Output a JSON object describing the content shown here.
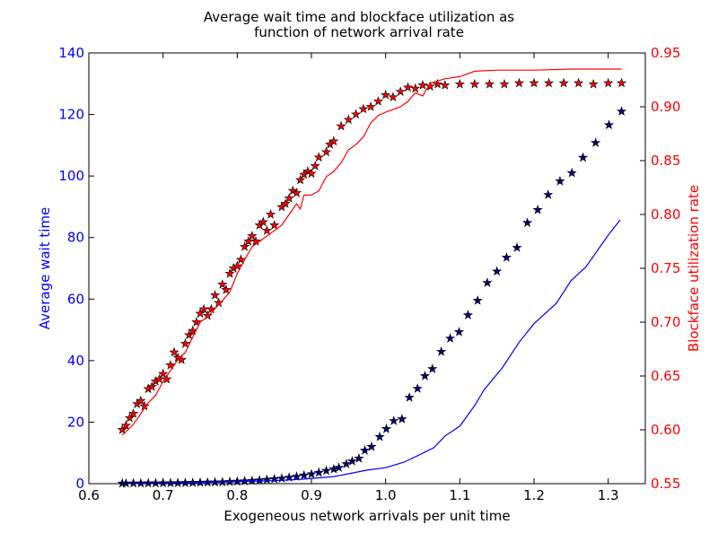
{
  "chart_data": {
    "type": "scatter-line-dual",
    "title": [
      "Average wait time and blockface utilization as",
      "function of network arrival rate"
    ],
    "x_label": "Exogeneous network arrivals per unit time",
    "y_label": "Average wait time",
    "y2_label": "Blockface utilization rate",
    "xlim": [
      0.6,
      1.35
    ],
    "xticks": [
      0.6,
      0.7,
      0.8,
      0.9,
      {
        "value": 1,
        "label": "1.0"
      },
      1.1,
      1.2,
      1.3
    ],
    "ylim": [
      0,
      140
    ],
    "yticks": [
      0,
      20,
      40,
      60,
      80,
      100,
      120,
      140
    ],
    "y2lim": [
      0.55,
      0.95
    ],
    "y2ticks": [
      0.55,
      {
        "value": 0.6,
        "label": "0.60"
      },
      0.65,
      {
        "value": 0.7,
        "label": "0.70"
      },
      0.75,
      {
        "value": 0.8,
        "label": "0.80"
      },
      0.85,
      {
        "value": 0.9,
        "label": "0.90"
      },
      0.95
    ],
    "y_color": "#0000ff",
    "y2_color": "#ff0000",
    "series": [
      {
        "marker": "star",
        "color": "#000080",
        "axis": "y",
        "x": [
          0.645,
          0.65,
          0.66,
          0.67,
          0.68,
          0.69,
          0.7,
          0.71,
          0.72,
          0.73,
          0.74,
          0.75,
          0.76,
          0.77,
          0.78,
          0.79,
          0.8,
          0.81,
          0.82,
          0.83,
          0.84,
          0.85,
          0.86,
          0.87,
          0.88,
          0.89,
          0.9,
          0.91,
          0.92,
          0.93,
          0.937,
          0.947,
          0.955,
          0.964,
          0.972,
          0.981,
          0.992,
          1.001,
          1.011,
          1.022,
          1.032,
          1.043,
          1.053,
          1.063,
          1.075,
          1.087,
          1.099,
          1.111,
          1.124,
          1.137,
          1.15,
          1.163,
          1.177,
          1.191,
          1.205,
          1.219,
          1.235,
          1.251,
          1.266,
          1.283,
          1.301,
          1.318
        ],
        "values": [
          0.1,
          0.1,
          0.12,
          0.13,
          0.15,
          0.17,
          0.19,
          0.21,
          0.24,
          0.27,
          0.3,
          0.35,
          0.4,
          0.45,
          0.5,
          0.6,
          0.7,
          0.8,
          0.95,
          1.1,
          1.3,
          1.5,
          1.7,
          2.0,
          2.3,
          2.7,
          3.1,
          3.6,
          4.2,
          4.7,
          5.2,
          6.4,
          7.3,
          8.2,
          10.8,
          12,
          15.2,
          17.8,
          20.4,
          21,
          28,
          30.9,
          35,
          37.3,
          42.9,
          47.2,
          49.3,
          54.8,
          59.5,
          65.3,
          69,
          73.5,
          76.7,
          84.8,
          89,
          93.9,
          98.3,
          101,
          106,
          110.8,
          116.6,
          121
        ]
      },
      {
        "marker": "line",
        "color": "#0000ff",
        "axis": "y",
        "x": [
          0.645,
          0.7,
          0.75,
          0.8,
          0.85,
          0.89,
          0.93,
          0.95,
          0.975,
          1.0,
          1.025,
          1.05,
          1.065,
          1.08,
          1.1,
          1.12,
          1.133,
          1.157,
          1.18,
          1.2,
          1.23,
          1.25,
          1.27,
          1.3,
          1.316
        ],
        "values": [
          0.1,
          0.2,
          0.4,
          0.6,
          1,
          1.5,
          2.3,
          3.2,
          4.4,
          5.2,
          7,
          9.9,
          11.7,
          15.5,
          18.7,
          25.4,
          30.6,
          37.6,
          46,
          52,
          58.6,
          66,
          70.5,
          80.8,
          85.7
        ]
      },
      {
        "marker": "star",
        "color": "#ff0000",
        "axis": "y2",
        "x": [
          0.645,
          0.65,
          0.655,
          0.66,
          0.665,
          0.67,
          0.675,
          0.68,
          0.685,
          0.69,
          0.695,
          0.7,
          0.705,
          0.71,
          0.715,
          0.72,
          0.725,
          0.73,
          0.735,
          0.74,
          0.745,
          0.75,
          0.755,
          0.76,
          0.765,
          0.77,
          0.775,
          0.78,
          0.785,
          0.79,
          0.795,
          0.8,
          0.805,
          0.81,
          0.815,
          0.82,
          0.825,
          0.83,
          0.835,
          0.84,
          0.845,
          0.85,
          0.86,
          0.865,
          0.87,
          0.875,
          0.88,
          0.885,
          0.89,
          0.895,
          0.9,
          0.905,
          0.91,
          0.92,
          0.925,
          0.93,
          0.94,
          0.95,
          0.96,
          0.97,
          0.98,
          0.99,
          1.0,
          1.01,
          1.02,
          1.03,
          1.04,
          1.05,
          1.06,
          1.07,
          1.08,
          1.1,
          1.12,
          1.14,
          1.16,
          1.18,
          1.2,
          1.22,
          1.24,
          1.26,
          1.28,
          1.3,
          1.318
        ],
        "values": [
          0.6,
          0.604,
          0.611,
          0.615,
          0.624,
          0.627,
          0.622,
          0.638,
          0.64,
          0.645,
          0.647,
          0.652,
          0.647,
          0.66,
          0.672,
          0.667,
          0.665,
          0.68,
          0.688,
          0.692,
          0.7,
          0.708,
          0.712,
          0.706,
          0.712,
          0.725,
          0.718,
          0.735,
          0.73,
          0.745,
          0.75,
          0.752,
          0.758,
          0.77,
          0.775,
          0.78,
          0.775,
          0.79,
          0.793,
          0.785,
          0.8,
          0.79,
          0.807,
          0.81,
          0.815,
          0.822,
          0.82,
          0.832,
          0.837,
          0.84,
          0.838,
          0.845,
          0.853,
          0.858,
          0.865,
          0.868,
          0.882,
          0.888,
          0.893,
          0.898,
          0.9,
          0.905,
          0.911,
          0.909,
          0.914,
          0.918,
          0.917,
          0.92,
          0.919,
          0.921,
          0.92,
          0.921,
          0.921,
          0.921,
          0.921,
          0.922,
          0.922,
          0.922,
          0.922,
          0.922,
          0.921,
          0.922,
          0.922
        ]
      },
      {
        "marker": "line",
        "color": "#ff0000",
        "axis": "y2",
        "x": [
          0.645,
          0.66,
          0.67,
          0.68,
          0.69,
          0.7,
          0.71,
          0.72,
          0.73,
          0.75,
          0.76,
          0.78,
          0.79,
          0.8,
          0.81,
          0.82,
          0.83,
          0.84,
          0.85,
          0.86,
          0.87,
          0.88,
          0.885,
          0.89,
          0.9,
          0.91,
          0.92,
          0.93,
          0.94,
          0.95,
          0.96,
          0.97,
          0.98,
          0.99,
          1.0,
          1.02,
          1.03,
          1.04,
          1.05,
          1.06,
          1.08,
          1.1,
          1.12,
          1.15,
          1.2,
          1.25,
          1.3,
          1.318
        ],
        "values": [
          0.595,
          0.605,
          0.615,
          0.625,
          0.632,
          0.645,
          0.655,
          0.665,
          0.672,
          0.7,
          0.705,
          0.72,
          0.728,
          0.745,
          0.758,
          0.77,
          0.775,
          0.78,
          0.785,
          0.79,
          0.8,
          0.81,
          0.805,
          0.818,
          0.818,
          0.822,
          0.835,
          0.84,
          0.848,
          0.86,
          0.865,
          0.872,
          0.885,
          0.892,
          0.895,
          0.9,
          0.905,
          0.913,
          0.91,
          0.922,
          0.926,
          0.928,
          0.933,
          0.934,
          0.934,
          0.935,
          0.935,
          0.935
        ]
      }
    ]
  }
}
